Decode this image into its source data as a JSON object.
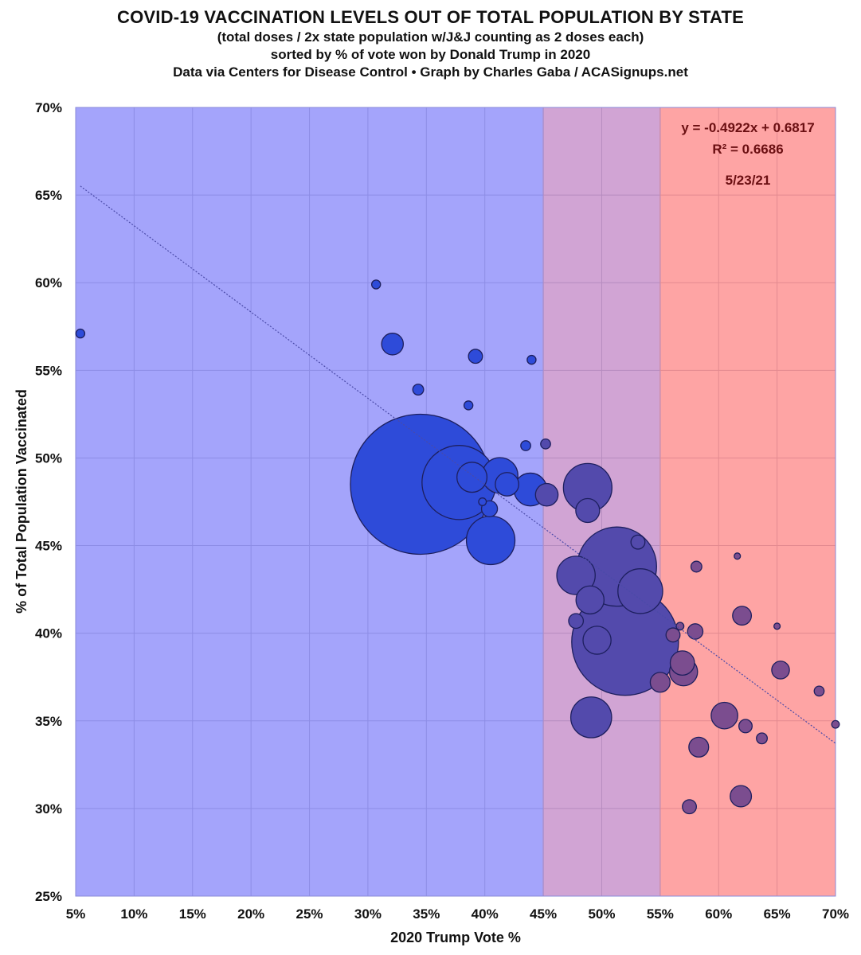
{
  "chart_data": {
    "type": "scatter",
    "subtype": "bubble",
    "title": "COVID-19 VACCINATION LEVELS OUT OF TOTAL POPULATION BY STATE",
    "subtitles": [
      "(total doses / 2x state population w/J&J counting as 2 doses each)",
      "sorted by % of vote won by Donald Trump in 2020",
      "Data via Centers for Disease Control • Graph by Charles Gaba / ACASignups.net"
    ],
    "xlabel": "2020 Trump Vote %",
    "ylabel": "% of Total Population Vaccinated",
    "xlim": [
      5,
      70
    ],
    "ylim": [
      25,
      70
    ],
    "x_ticks": [
      "5%",
      "10%",
      "15%",
      "20%",
      "25%",
      "30%",
      "35%",
      "40%",
      "45%",
      "50%",
      "55%",
      "60%",
      "65%",
      "70%"
    ],
    "y_ticks": [
      "25%",
      "30%",
      "35%",
      "40%",
      "45%",
      "50%",
      "55%",
      "60%",
      "65%",
      "70%"
    ],
    "grid": true,
    "bands": [
      {
        "name": "blue-zone",
        "from": 5,
        "to": 45,
        "color": "#a4a4fb"
      },
      {
        "name": "purple-zone",
        "from": 45,
        "to": 55,
        "color": "#d1a4d4"
      },
      {
        "name": "red-zone",
        "from": 55,
        "to": 70,
        "color": "#fea4a4"
      }
    ],
    "trendline": {
      "slope": -0.4922,
      "intercept": 0.6817,
      "x_range": [
        5.4,
        70
      ],
      "style": "dotted",
      "color": "#4a4aa8"
    },
    "annotations": {
      "equation": "y = -0.4922x + 0.6817",
      "r_squared": "R² = 0.6686",
      "date": "5/23/21"
    },
    "colors": {
      "blue_bubble": "#2e4bd9",
      "purple_bubble": "#534aac",
      "red_bubble": "#7b4d8f",
      "bubble_stroke": "#1d1f5e",
      "annotation": "#6b0f12"
    },
    "points": [
      {
        "x": 5.4,
        "y": 57.1,
        "size": 0.4
      },
      {
        "x": 30.7,
        "y": 59.9,
        "size": 0.4
      },
      {
        "x": 32.1,
        "y": 56.5,
        "size": 2.4
      },
      {
        "x": 34.3,
        "y": 53.9,
        "size": 0.6
      },
      {
        "x": 38.6,
        "y": 53.0,
        "size": 0.4
      },
      {
        "x": 39.2,
        "y": 55.8,
        "size": 1.0
      },
      {
        "x": 44.0,
        "y": 55.6,
        "size": 0.4
      },
      {
        "x": 43.5,
        "y": 50.7,
        "size": 0.5
      },
      {
        "x": 45.2,
        "y": 50.8,
        "size": 0.5
      },
      {
        "x": 34.5,
        "y": 48.5,
        "size": 100
      },
      {
        "x": 37.8,
        "y": 48.6,
        "size": 28
      },
      {
        "x": 38.9,
        "y": 48.9,
        "size": 4.6
      },
      {
        "x": 41.3,
        "y": 49.0,
        "size": 6.5
      },
      {
        "x": 41.9,
        "y": 48.5,
        "size": 2.8
      },
      {
        "x": 43.9,
        "y": 48.2,
        "size": 5.5
      },
      {
        "x": 45.3,
        "y": 47.9,
        "size": 2.6
      },
      {
        "x": 39.8,
        "y": 47.5,
        "size": 0.3
      },
      {
        "x": 40.4,
        "y": 47.1,
        "size": 1.3
      },
      {
        "x": 40.5,
        "y": 45.3,
        "size": 12
      },
      {
        "x": 48.8,
        "y": 48.3,
        "size": 12
      },
      {
        "x": 48.8,
        "y": 47.0,
        "size": 2.9
      },
      {
        "x": 53.1,
        "y": 45.2,
        "size": 1.0
      },
      {
        "x": 47.8,
        "y": 43.3,
        "size": 7.5
      },
      {
        "x": 51.3,
        "y": 43.8,
        "size": 32
      },
      {
        "x": 53.3,
        "y": 42.4,
        "size": 10.2
      },
      {
        "x": 49.0,
        "y": 41.9,
        "size": 4.0
      },
      {
        "x": 47.8,
        "y": 40.7,
        "size": 1.1
      },
      {
        "x": 49.6,
        "y": 39.6,
        "size": 4.0
      },
      {
        "x": 52.0,
        "y": 39.5,
        "size": 58
      },
      {
        "x": 48.0,
        "y": 41.0,
        "size": 0.0
      },
      {
        "x": 49.1,
        "y": 35.2,
        "size": 8.5
      },
      {
        "x": 55.0,
        "y": 37.2,
        "size": 2.0
      },
      {
        "x": 56.1,
        "y": 39.9,
        "size": 1.0
      },
      {
        "x": 56.7,
        "y": 40.4,
        "size": 0.3
      },
      {
        "x": 58.0,
        "y": 40.1,
        "size": 1.2
      },
      {
        "x": 56.9,
        "y": 38.3,
        "size": 3.0
      },
      {
        "x": 57.0,
        "y": 37.8,
        "size": 4.0
      },
      {
        "x": 58.1,
        "y": 43.8,
        "size": 0.6
      },
      {
        "x": 61.6,
        "y": 44.4,
        "size": 0.2
      },
      {
        "x": 62.0,
        "y": 41.0,
        "size": 1.8
      },
      {
        "x": 65.0,
        "y": 40.4,
        "size": 0.2
      },
      {
        "x": 65.3,
        "y": 37.9,
        "size": 1.6
      },
      {
        "x": 68.6,
        "y": 36.7,
        "size": 0.5
      },
      {
        "x": 70.0,
        "y": 34.8,
        "size": 0.3
      },
      {
        "x": 60.5,
        "y": 35.3,
        "size": 3.6
      },
      {
        "x": 62.3,
        "y": 34.7,
        "size": 0.9
      },
      {
        "x": 63.7,
        "y": 34.0,
        "size": 0.6
      },
      {
        "x": 58.3,
        "y": 33.5,
        "size": 2.0
      },
      {
        "x": 61.9,
        "y": 30.7,
        "size": 2.3
      },
      {
        "x": 57.5,
        "y": 30.1,
        "size": 1.0
      }
    ]
  }
}
